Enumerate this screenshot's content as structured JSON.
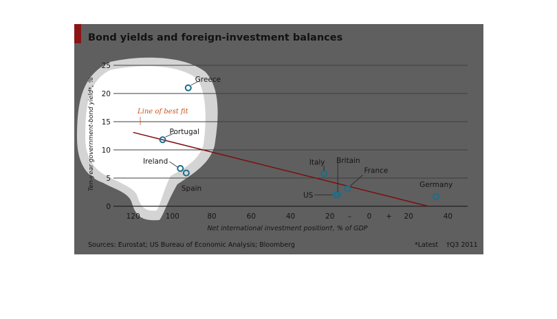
{
  "title": "Bond yields and foreign-investment balances",
  "sources": "Sources: Eurostat; US Bureau of Economic Analysis; Bloomberg",
  "notes": {
    "latest": "*Latest",
    "q3": "†Q3 2011"
  },
  "colors": {
    "panel": "#5f5f5f",
    "highlight": "#ffffff",
    "halo": "#d4d4d4",
    "accent_red": "#8b1414",
    "fit_line": "#7a0e0e",
    "marker": "#1a6e8a"
  },
  "chart_data": {
    "type": "scatter",
    "title": "Bond yields and foreign-investment balances",
    "xlabel": "Net international investment position†, % of GDP",
    "ylabel": "Ten-year government-bond yield*, %",
    "xlim": [
      -130,
      50
    ],
    "ylim": [
      0,
      25
    ],
    "x_ticks": [
      "120",
      "100",
      "80",
      "60",
      "40",
      "20",
      "–",
      "0",
      "+",
      "20",
      "40"
    ],
    "y_ticks": [
      "0",
      "5",
      "10",
      "15",
      "20",
      "25"
    ],
    "grid": true,
    "points": [
      {
        "label": "Greece",
        "x": -92,
        "y": 21.0
      },
      {
        "label": "Portugal",
        "x": -105,
        "y": 11.8
      },
      {
        "label": "Ireland",
        "x": -96,
        "y": 6.7
      },
      {
        "label": "Spain",
        "x": -93,
        "y": 5.9
      },
      {
        "label": "Italy",
        "x": -23,
        "y": 5.8
      },
      {
        "label": "Britain",
        "x": -16,
        "y": 2.1
      },
      {
        "label": "US",
        "x": -17,
        "y": 2.0
      },
      {
        "label": "France",
        "x": -11,
        "y": 3.1
      },
      {
        "label": "Germany",
        "x": 34,
        "y": 1.7
      }
    ],
    "fit_line": {
      "label": "Line of best fit",
      "x": [
        -120,
        30
      ],
      "y": [
        13.1,
        0
      ]
    }
  }
}
